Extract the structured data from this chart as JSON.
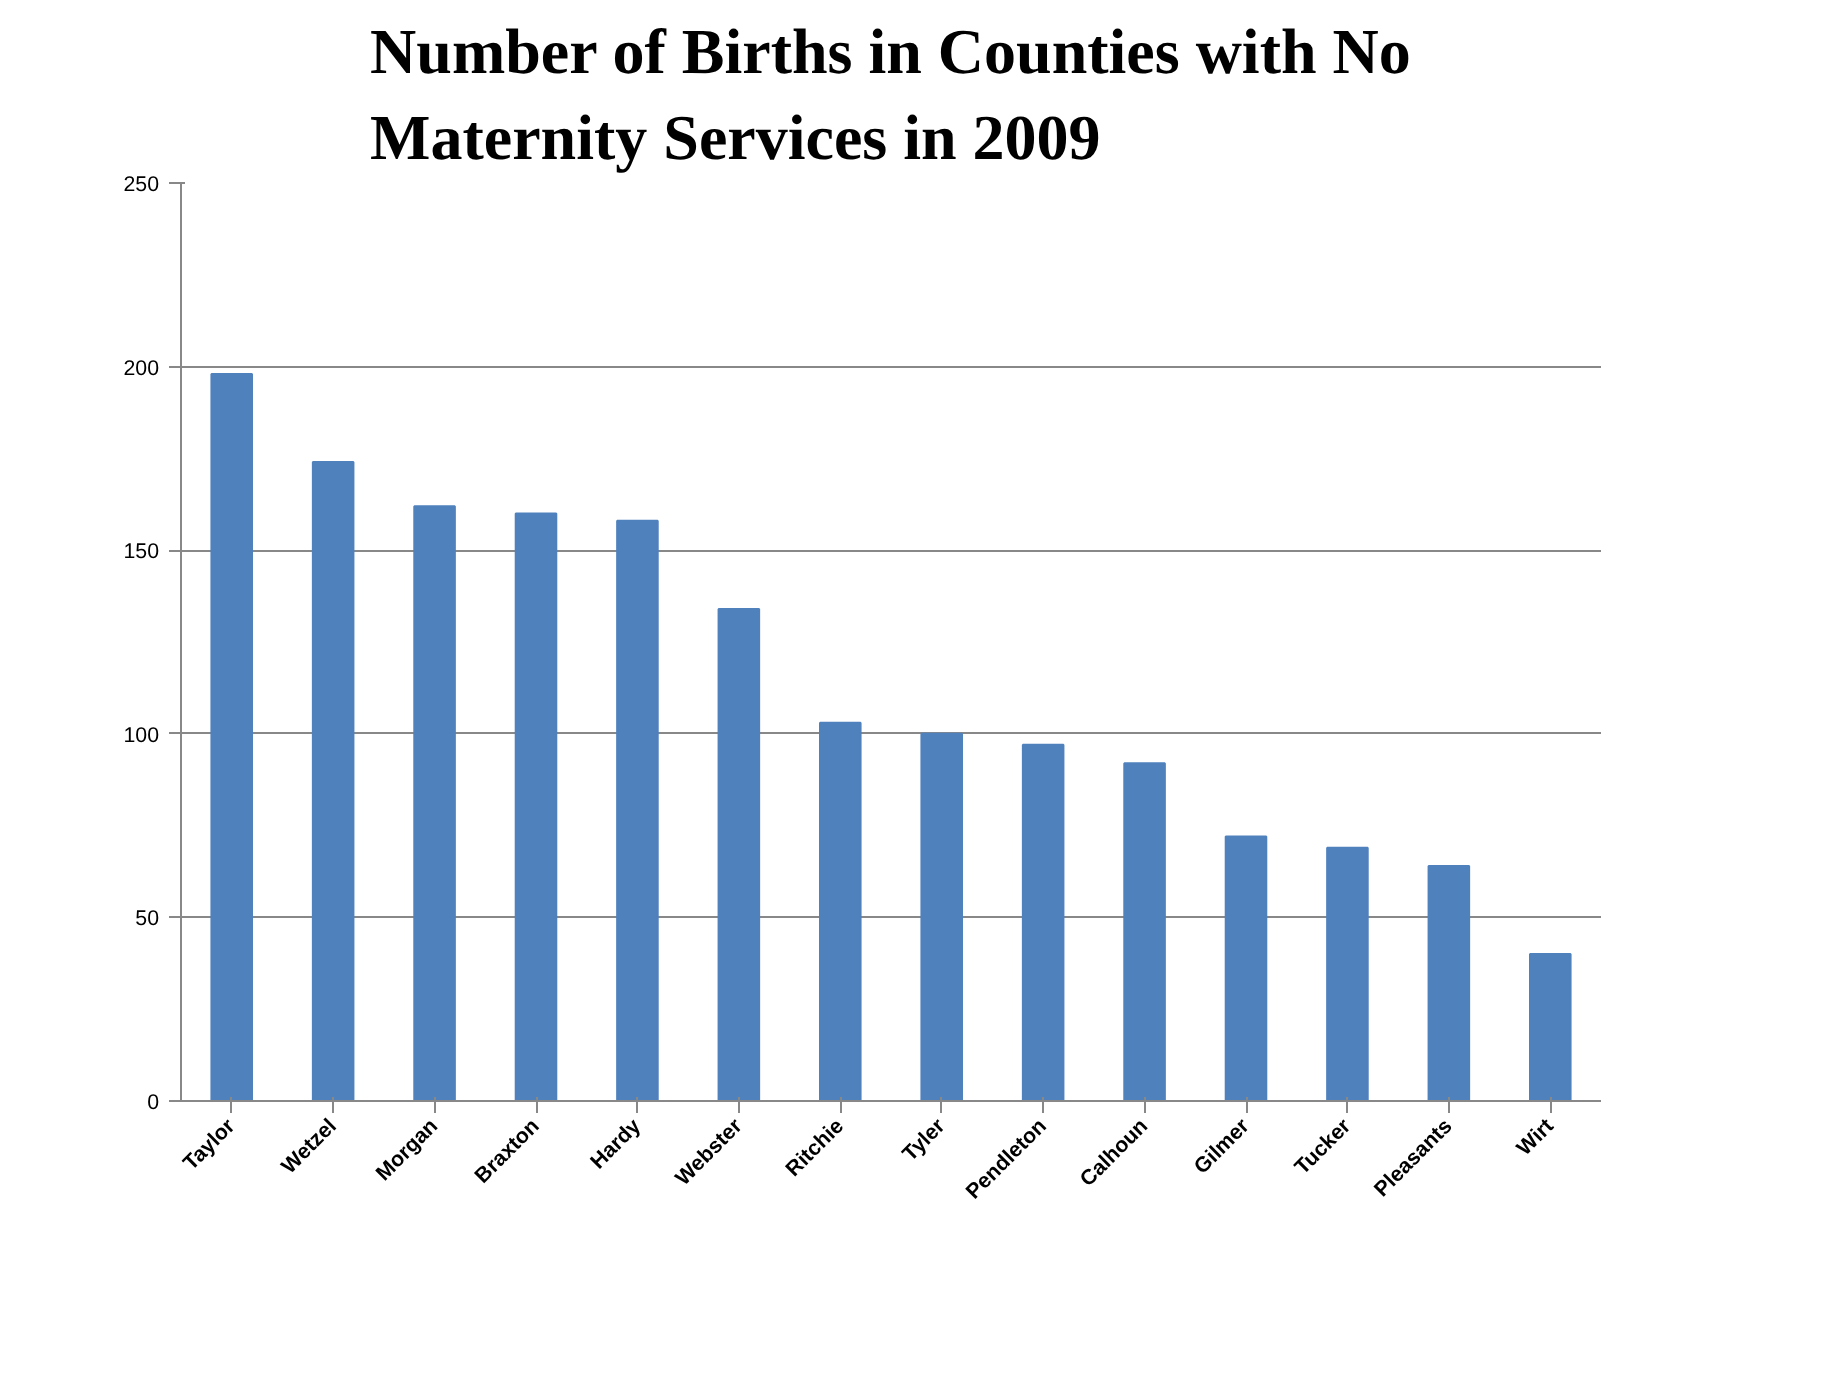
{
  "chart_data": {
    "type": "bar",
    "title": "Number of Births in Counties with No Maternity Services in 2009",
    "categories": [
      "Taylor",
      "Wetzel",
      "Morgan",
      "Braxton",
      "Hardy",
      "Webster",
      "Ritchie",
      "Tyler",
      "Pendleton",
      "Calhoun",
      "Gilmer",
      "Tucker",
      "Pleasants",
      "Wirt"
    ],
    "values": [
      198,
      174,
      162,
      160,
      158,
      134,
      103,
      100,
      97,
      92,
      72,
      69,
      64,
      40
    ],
    "color": "#4f81bd",
    "ylim": [
      0,
      250
    ],
    "yticks": [
      0,
      50,
      100,
      150,
      200,
      250
    ],
    "grid": "y"
  }
}
